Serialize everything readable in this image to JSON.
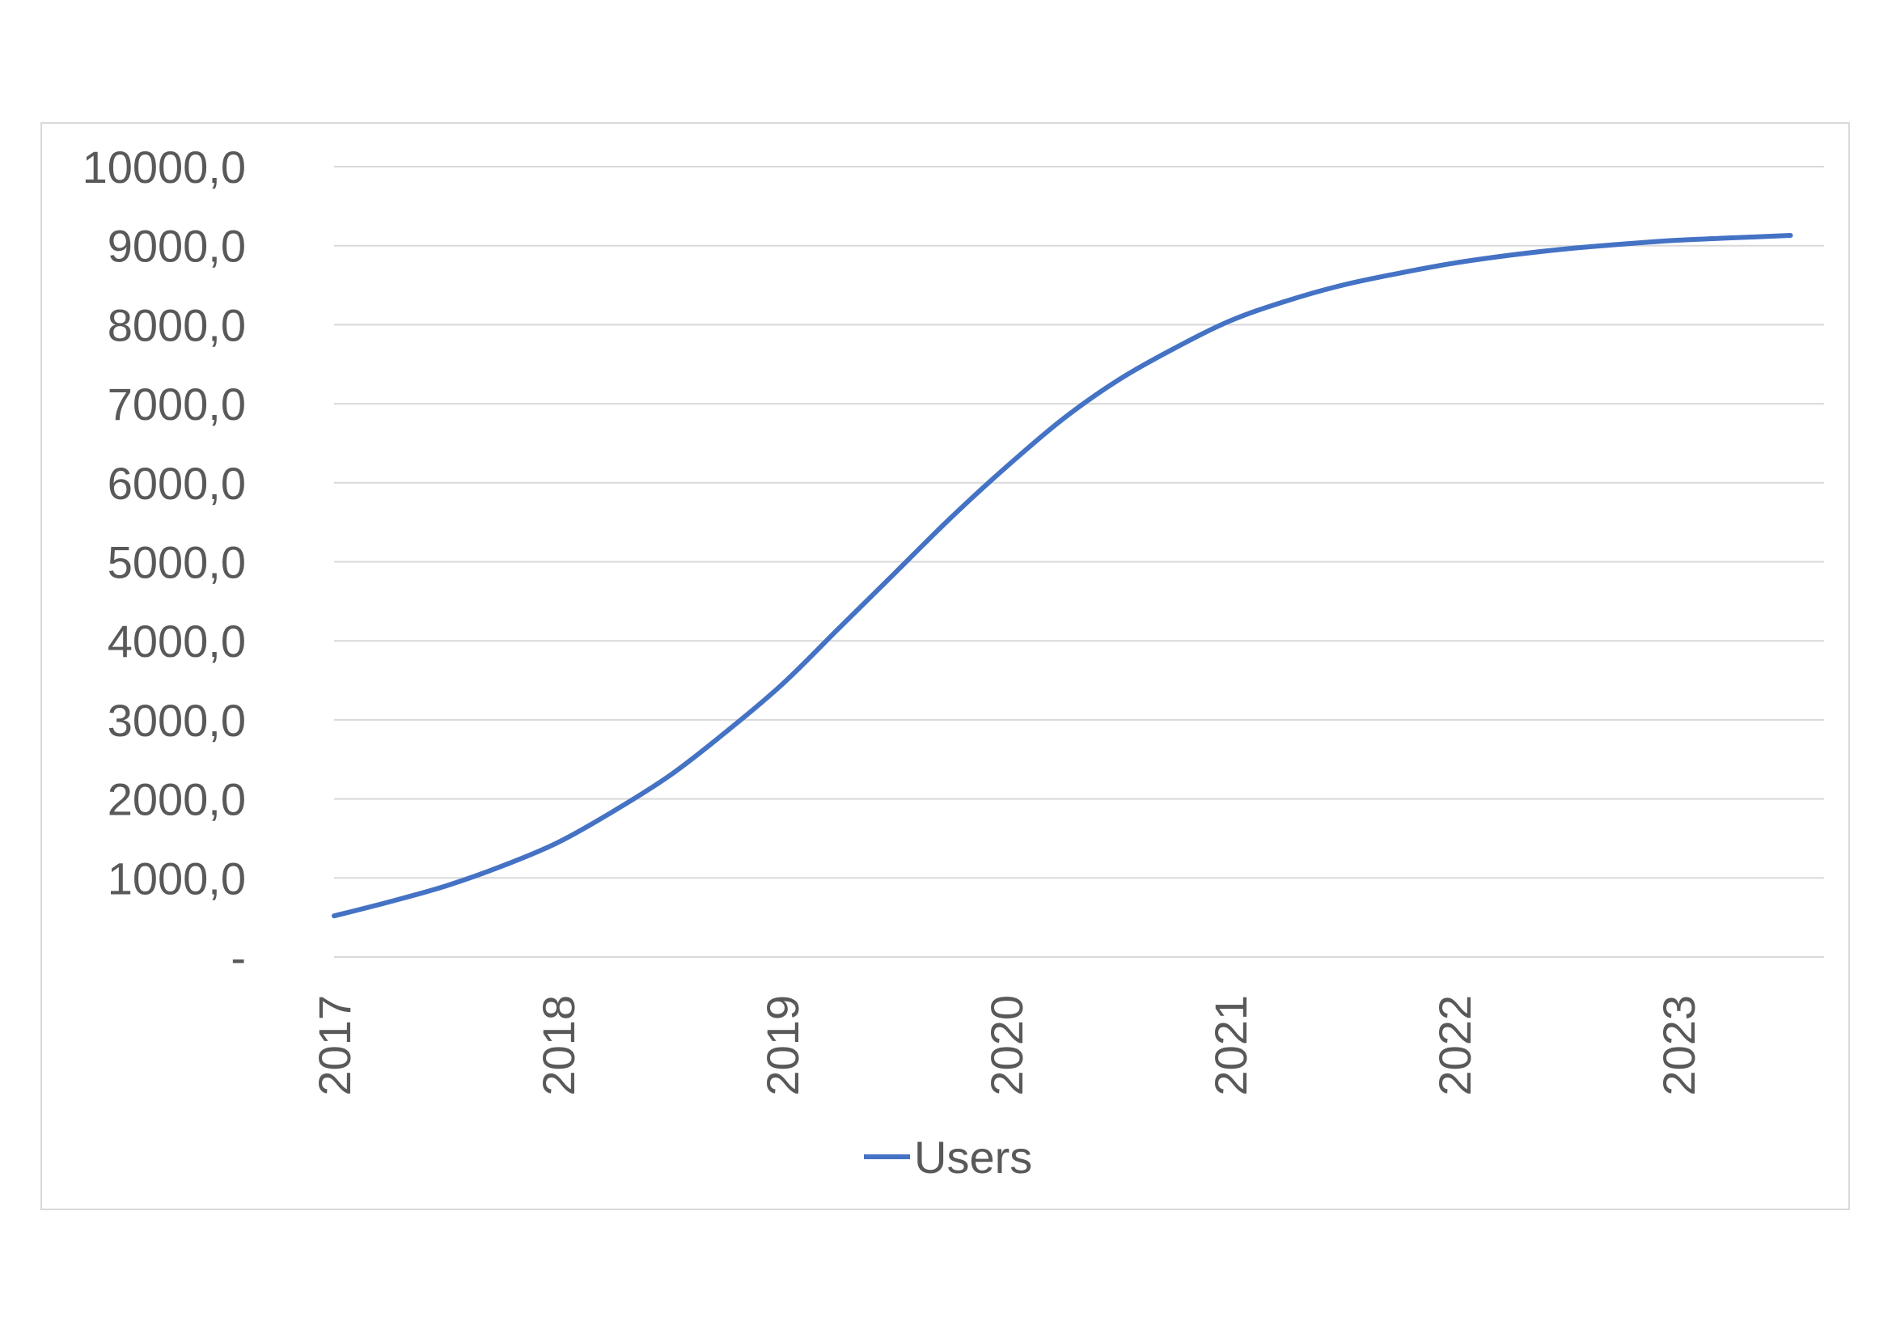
{
  "chart_data": {
    "type": "line",
    "title": "",
    "xlabel": "",
    "ylabel": "",
    "x_ticks": [
      "2017",
      "2018",
      "2019",
      "2020",
      "2021",
      "2022",
      "2023"
    ],
    "xlim": [
      2017,
      2023.65
    ],
    "ylim": [
      0,
      10000
    ],
    "y_ticks": [
      0,
      1000,
      2000,
      3000,
      4000,
      5000,
      6000,
      7000,
      8000,
      9000,
      10000
    ],
    "y_tick_labels": [
      "-",
      "1000,0",
      "2000,0",
      "3000,0",
      "4000,0",
      "5000,0",
      "6000,0",
      "7000,0",
      "8000,0",
      "9000,0",
      "10000,0"
    ],
    "grid": true,
    "legend_position": "bottom",
    "colors": {
      "series": "#4472c4",
      "grid": "#d9d9d9",
      "text": "#595959"
    },
    "series": [
      {
        "name": "Users",
        "x": [
          2017.0,
          2017.25,
          2017.5,
          2017.75,
          2018.0,
          2018.25,
          2018.5,
          2018.75,
          2019.0,
          2019.25,
          2019.5,
          2019.75,
          2020.0,
          2020.25,
          2020.5,
          2020.75,
          2021.0,
          2021.25,
          2021.5,
          2021.75,
          2022.0,
          2022.25,
          2022.5,
          2022.75,
          2023.0,
          2023.25,
          2023.5
        ],
        "values": [
          520,
          700,
          900,
          1150,
          1450,
          1850,
          2300,
          2850,
          3450,
          4150,
          4850,
          5550,
          6200,
          6800,
          7300,
          7700,
          8050,
          8300,
          8500,
          8650,
          8780,
          8880,
          8960,
          9020,
          9070,
          9100,
          9130
        ]
      }
    ]
  }
}
